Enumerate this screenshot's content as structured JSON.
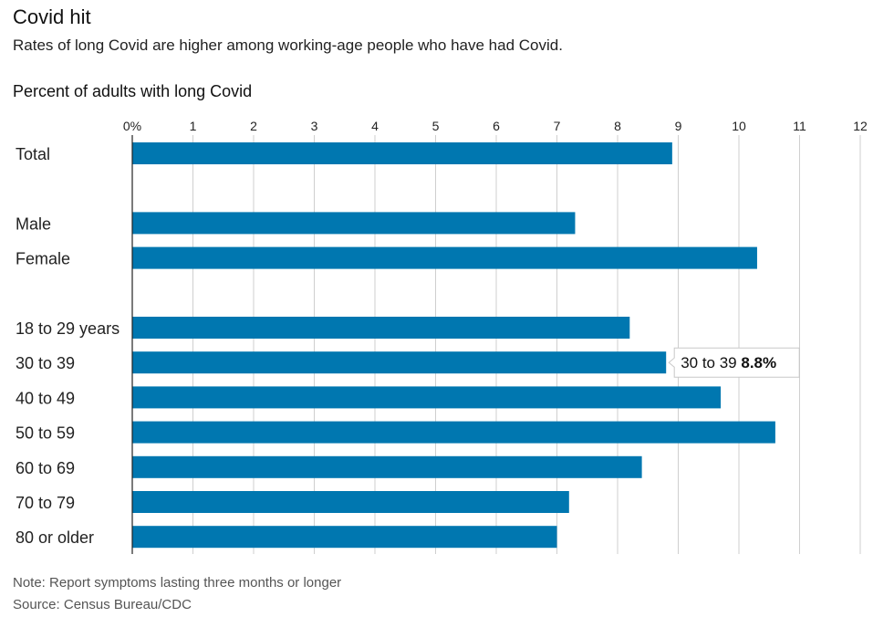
{
  "chart_data": {
    "type": "bar",
    "orientation": "horizontal",
    "title": "Covid hit",
    "subtitle": "Rates of long Covid are higher among working-age people who have had Covid.",
    "xlabel": "Percent of adults with long Covid",
    "xlim": [
      0,
      12
    ],
    "x_ticks": [
      "0%",
      "1",
      "2",
      "3",
      "4",
      "5",
      "6",
      "7",
      "8",
      "9",
      "10",
      "11",
      "12"
    ],
    "grid": true,
    "bar_color": "#0077b0",
    "groups": [
      {
        "items": [
          {
            "category": "Total",
            "value": 8.9
          }
        ]
      },
      {
        "items": [
          {
            "category": "Male",
            "value": 7.3
          },
          {
            "category": "Female",
            "value": 10.3
          }
        ]
      },
      {
        "items": [
          {
            "category": "18 to 29 years",
            "value": 8.2
          },
          {
            "category": "30 to 39",
            "value": 8.8
          },
          {
            "category": "40 to 49",
            "value": 9.7
          },
          {
            "category": "50 to 59",
            "value": 10.6
          },
          {
            "category": "60 to 69",
            "value": 8.4
          },
          {
            "category": "70 to 79",
            "value": 7.2
          },
          {
            "category": "80 or older",
            "value": 7.0
          }
        ]
      }
    ],
    "tooltip": {
      "category": "30 to 39",
      "label": "30 to 39",
      "value_text": "8.8%"
    }
  },
  "footer": {
    "note": "Note: Report symptoms lasting three months or longer",
    "source": "Source: Census Bureau/CDC"
  }
}
